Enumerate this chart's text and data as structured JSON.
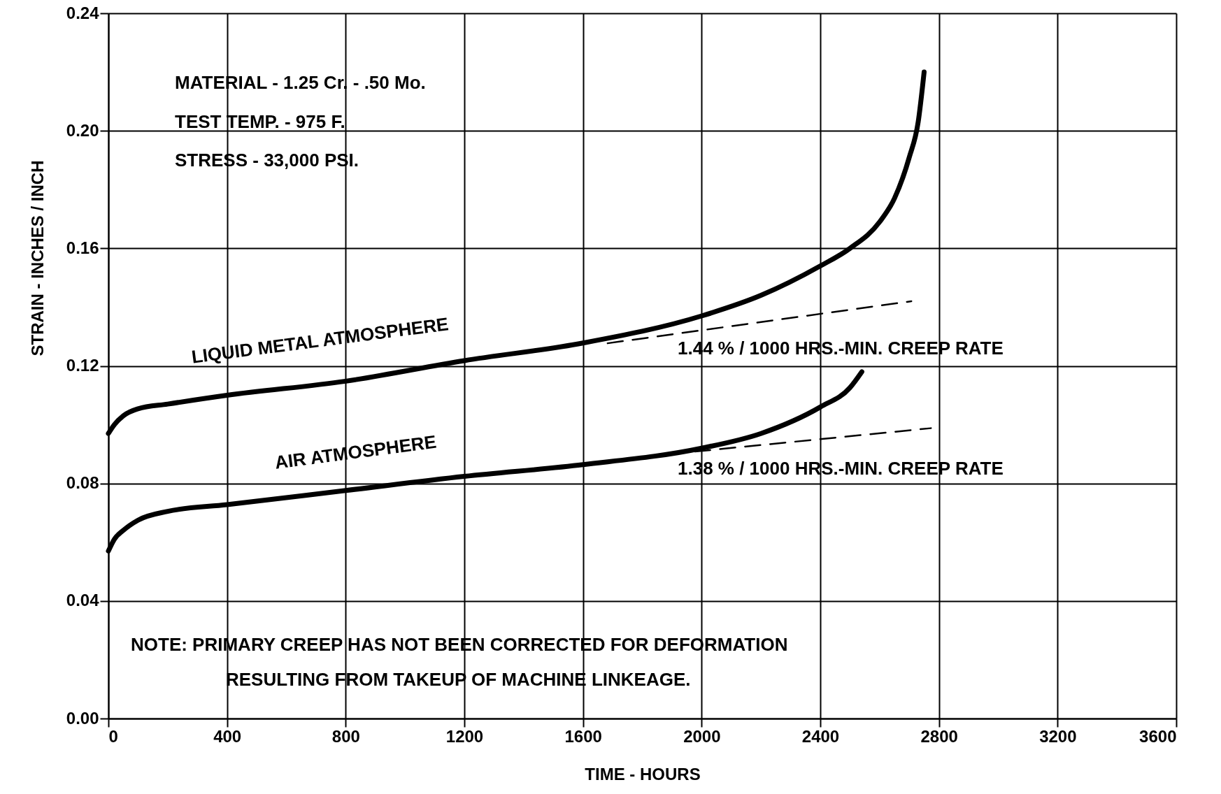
{
  "chart_data": {
    "type": "line",
    "xlabel": "TIME - HOURS",
    "ylabel": "STRAIN - INCHES / INCH",
    "xlim": [
      0,
      3600
    ],
    "xticks": [
      0,
      400,
      800,
      1200,
      1600,
      2000,
      2400,
      2800,
      3200,
      3600
    ],
    "ylim": [
      0,
      0.24
    ],
    "yticks": [
      {
        "value": 0,
        "label": "0.00"
      },
      0.04,
      0.08,
      0.12,
      0.16,
      {
        "value": 0.2,
        "label": "0.20"
      },
      0.24
    ],
    "grid": true,
    "marker": "none",
    "series": [
      {
        "name": "LIQUID METAL ATMOSPHERE",
        "color": "#000000",
        "line_style": "solid",
        "x": [
          0,
          20,
          50,
          100,
          200,
          400,
          800,
          1200,
          1600,
          2000,
          2200,
          2400,
          2500,
          2600,
          2650,
          2700,
          2730,
          2750
        ],
        "values": [
          0.097,
          0.1,
          0.103,
          0.1054,
          0.107,
          0.11,
          0.1148,
          0.1218,
          0.1278,
          0.137,
          0.144,
          0.154,
          0.16,
          0.169,
          0.177,
          0.191,
          0.203,
          0.22
        ]
      },
      {
        "name": "AIR ATMOSPHERE",
        "color": "#000000",
        "line_style": "solid",
        "x": [
          0,
          20,
          50,
          100,
          200,
          400,
          800,
          1200,
          1600,
          2000,
          2200,
          2400,
          2500,
          2540
        ],
        "values": [
          0.057,
          0.061,
          0.064,
          0.0675,
          0.0705,
          0.0728,
          0.0776,
          0.0824,
          0.0864,
          0.092,
          0.097,
          0.106,
          0.1126,
          0.118
        ]
      },
      {
        "type": "line",
        "color": "#000000",
        "line_style": "dashed",
        "x": [
          1683,
          2707
        ],
        "values": [
          0.1277,
          0.142
        ]
      },
      {
        "type": "line",
        "color": "#000000",
        "line_style": "dashed",
        "x": [
          1893,
          2773
        ],
        "values": [
          0.09,
          0.0988
        ]
      }
    ],
    "annotations": [
      "MATERIAL - 1.25 Cr. - .50 Mo.",
      "TEST  TEMP. - 975 F.",
      "STRESS - 33,000 PSI.",
      "NOTE: PRIMARY CREEP HAS NOT BEEN CORRECTED FOR DEFORMATION",
      "RESULTING FROM TAKEUP OF MACHINE LINKEAGE.",
      "1.44 % / 1000 HRS.-MIN. CREEP RATE",
      "1.38 % / 1000 HRS.-MIN. CREEP RATE"
    ]
  }
}
